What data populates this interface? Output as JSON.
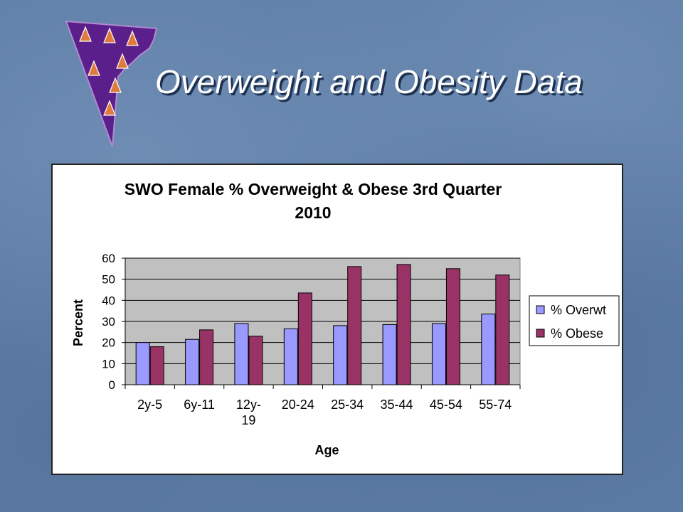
{
  "slide": {
    "title": "Overweight and Obesity Data"
  },
  "colors": {
    "overweight": "#9999ff",
    "obese": "#993366",
    "plot_bg": "#c0c0c0",
    "title_text": "#ffffff",
    "logo_fill": "#5b1f8c"
  },
  "chart_data": {
    "type": "bar",
    "title": "SWO Female % Overweight & Obese 3rd Quarter 2010",
    "title_lines": [
      "SWO Female % Overweight & Obese 3rd Quarter",
      "2010"
    ],
    "xlabel": "Age",
    "ylabel": "Percent",
    "categories": [
      "2y-5",
      "6y-11",
      "12y-19",
      "20-24",
      "25-34",
      "35-44",
      "45-54",
      "55-74"
    ],
    "category_lines": [
      [
        "2y-5"
      ],
      [
        "6y-11"
      ],
      [
        "12y-",
        "19"
      ],
      [
        "20-24"
      ],
      [
        "25-34"
      ],
      [
        "35-44"
      ],
      [
        "45-54"
      ],
      [
        "55-74"
      ]
    ],
    "series": [
      {
        "name": "% Overwt",
        "values": [
          20,
          21.5,
          29,
          26.5,
          28,
          28.5,
          29,
          33.5
        ]
      },
      {
        "name": "% Obese",
        "values": [
          18,
          26,
          23,
          43.5,
          56,
          57,
          55,
          52
        ]
      }
    ],
    "ylim": [
      0,
      60
    ],
    "yticks": [
      0,
      10,
      20,
      30,
      40,
      50,
      60
    ],
    "grid": true,
    "legend_position": "right"
  }
}
